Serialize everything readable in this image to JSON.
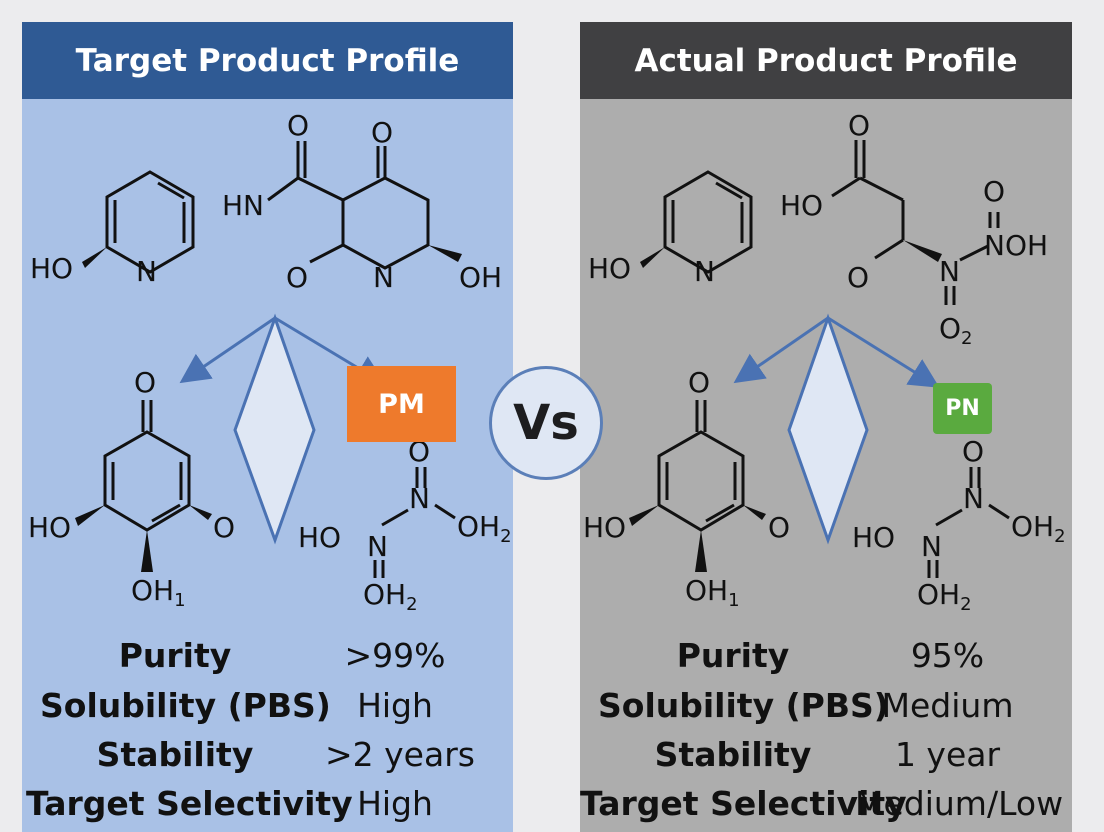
{
  "left_panel": {
    "title": "Target Product Profile",
    "badge": "PM",
    "rows": [
      {
        "label": "Purity",
        "value": ">99%"
      },
      {
        "label": "Solubility (PBS)",
        "value": "High"
      },
      {
        "label": "Stability",
        "value": ">2 years"
      },
      {
        "label": "Target Selectivity",
        "value": "High"
      }
    ],
    "molecules": {
      "m1": {
        "ho": "HO",
        "n": "N"
      },
      "m2": {
        "o_top": "O",
        "hn": "HN",
        "o_ketone": "O",
        "o_ring": "O",
        "n_ring": "N",
        "oh": "OH"
      },
      "m3": {
        "o_top": "O",
        "ho": "HO",
        "o_right": "O",
        "oh": "OH",
        "oh_sub": "1"
      },
      "m4": {
        "o_top": "O",
        "n_center": "N",
        "oh2": "OH",
        "oh2_sub": "2",
        "ho": "HO",
        "n_bottom": "N",
        "oh_bottom": "OH",
        "oh_bottom_sub": "2"
      }
    }
  },
  "right_panel": {
    "title": "Actual Product Profile",
    "badge": "PN",
    "rows": [
      {
        "label": "Purity",
        "value": "95%"
      },
      {
        "label": "Solubility (PBS)",
        "value": "Medium"
      },
      {
        "label": "Stability",
        "value": "1 year"
      },
      {
        "label": "Target Selectivity",
        "value": "Medium/Low"
      }
    ],
    "molecules": {
      "m1": {
        "ho": "HO",
        "n": "N"
      },
      "m2": {
        "o_top": "O",
        "ho": "HO",
        "o_mid": "O",
        "o_nitro": "O",
        "noh": "NOH",
        "n": "N",
        "o2": "O",
        "o2_sub": "2"
      },
      "m3": {
        "o_top": "O",
        "ho": "HO",
        "o_right": "O",
        "oh": "OH",
        "oh_sub": "1"
      },
      "m4": {
        "o_top": "O",
        "n_center": "N",
        "oh2": "OH",
        "oh2_sub": "2",
        "ho": "HO",
        "n_bottom": "N",
        "oh_bottom": "OH",
        "oh_bottom_sub": "2"
      }
    }
  },
  "vs_label": "Vs",
  "colors": {
    "left_header": "#2f5a94",
    "left_bg": "#a9c1e6",
    "right_header": "#404042",
    "right_bg": "#adadad",
    "pm_badge": "#ee7a2c",
    "pn_badge": "#5aaa3f",
    "arrow": "#4a72b3"
  }
}
